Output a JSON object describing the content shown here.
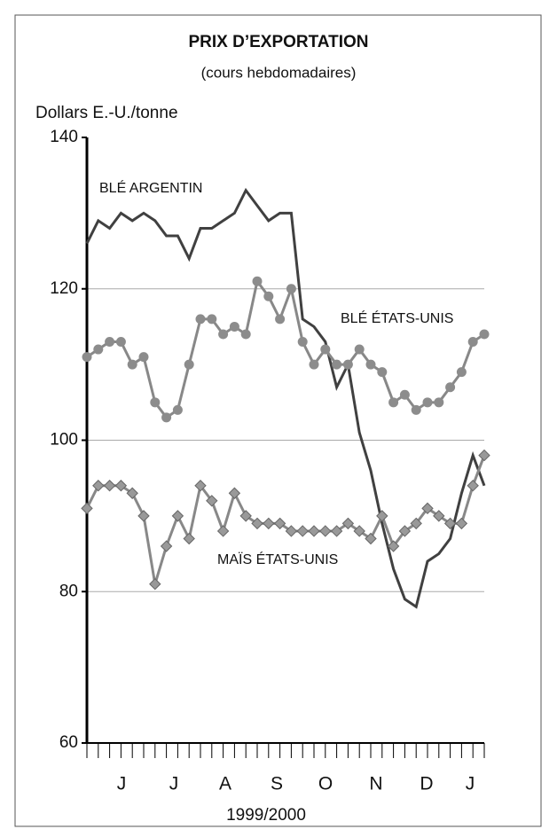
{
  "chart_data": {
    "type": "line",
    "title": "PRIX D’EXPORTATION",
    "subtitle": "(cours hebdomadaires)",
    "y_label": "Dollars E.-U./tonne",
    "x_label": "1999/2000",
    "month_labels": [
      "J",
      "J",
      "A",
      "S",
      "O",
      "N",
      "D",
      "J"
    ],
    "xlim": [
      0,
      35
    ],
    "ylim": [
      60,
      140
    ],
    "yticks": [
      60,
      80,
      100,
      120,
      140
    ],
    "grid": true,
    "series": [
      {
        "name": "BLÉ ARGENTIN",
        "color": "#404040",
        "marker": "none",
        "values": [
          126,
          129,
          128,
          130,
          129,
          130,
          129,
          127,
          127,
          124,
          128,
          128,
          129,
          130,
          133,
          131,
          129,
          130,
          130,
          116,
          115,
          113,
          107,
          110,
          101,
          96,
          89,
          83,
          79,
          78,
          84,
          85,
          87,
          93,
          98,
          94
        ]
      },
      {
        "name": "BLÉ ÉTATS-UNIS",
        "color": "#888888",
        "marker": "circle",
        "values": [
          111,
          112,
          113,
          113,
          110,
          111,
          105,
          103,
          104,
          110,
          116,
          116,
          114,
          115,
          114,
          121,
          119,
          116,
          120,
          113,
          110,
          112,
          110,
          110,
          112,
          110,
          109,
          105,
          106,
          104,
          105,
          105,
          107,
          109,
          113,
          114
        ]
      },
      {
        "name": "MAÏS ÉTATS-UNIS",
        "color": "#888888",
        "marker": "diamond",
        "values": [
          91,
          94,
          94,
          94,
          93,
          90,
          81,
          86,
          90,
          87,
          94,
          92,
          88,
          93,
          90,
          89,
          89,
          89,
          88,
          88,
          88,
          88,
          88,
          89,
          88,
          87,
          90,
          86,
          88,
          89,
          91,
          90,
          89,
          89,
          94,
          98
        ]
      }
    ]
  }
}
